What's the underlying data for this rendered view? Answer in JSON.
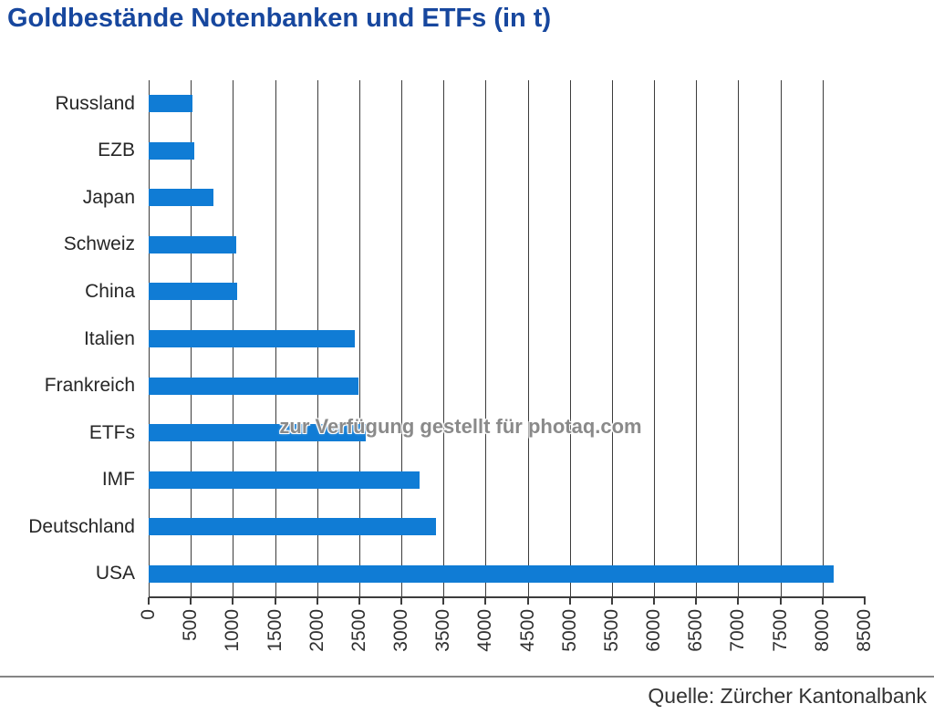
{
  "title": "Goldbestände Notenbanken und ETFs (in t)",
  "watermark": "zur Verfügung gestellt für photaq.com",
  "source": "Quelle: Zürcher Kantonalbank",
  "colors": {
    "title_blue": "#17479E",
    "bar_blue": "#107CD5",
    "gridline": "#3c3c3c",
    "label_text": "#262626",
    "separator_gray": "#858585"
  },
  "chart_data": {
    "type": "bar",
    "orientation": "horizontal",
    "title": "Goldbestände Notenbanken und ETFs (in t)",
    "unit": "t",
    "categories": [
      "Russland",
      "EZB",
      "Japan",
      "Schweiz",
      "China",
      "Italien",
      "Frankreich",
      "ETFs",
      "IMF",
      "Deutschland",
      "USA"
    ],
    "values": [
      524,
      537,
      765,
      1040,
      1054,
      2452,
      2487,
      2580,
      3217,
      3413,
      8134
    ],
    "xlabel": "",
    "ylabel": "",
    "xlim": [
      0,
      8500
    ],
    "x_ticks": [
      0,
      500,
      1000,
      1500,
      2000,
      2500,
      3000,
      3500,
      4000,
      4500,
      5000,
      5500,
      6000,
      6500,
      7000,
      7500,
      8000,
      8500
    ],
    "grid": "vertical-only",
    "gridline_at_max": false,
    "tick_label_rotation_deg": -90,
    "legend": "none"
  }
}
